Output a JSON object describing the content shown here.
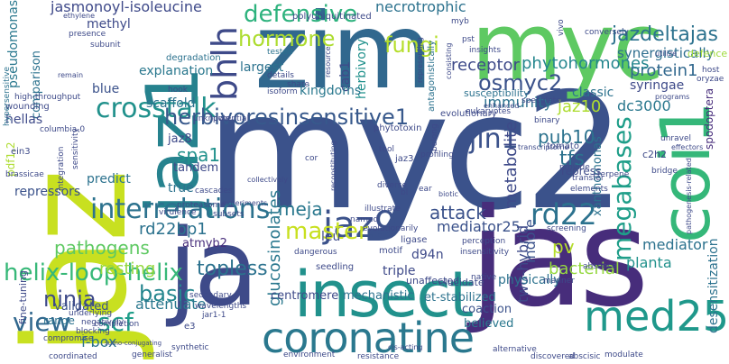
{
  "words": [
    {
      "text": "myc2",
      "color": "#3b528b"
    },
    {
      "text": "jas",
      "color": "#472d7b"
    },
    {
      "text": "jaz",
      "color": "#c8e020"
    },
    {
      "text": "zim",
      "color": "#31688e"
    },
    {
      "text": "myc",
      "color": "#5ec962"
    },
    {
      "text": "insect",
      "color": "#21918c"
    },
    {
      "text": "ja",
      "color": "#3e4a89"
    },
    {
      "text": "coi1",
      "color": "#35b779"
    },
    {
      "text": "jaz1",
      "color": "#26828e"
    },
    {
      "text": "coronatine",
      "color": "#2a788e"
    },
    {
      "text": "med25",
      "color": "#1f988b"
    },
    {
      "text": "jaz9",
      "color": "#3b528b"
    },
    {
      "text": "crosstalk",
      "color": "#21918c"
    },
    {
      "text": "interrelations",
      "color": "#2c728e"
    },
    {
      "text": "herbivoresinsensitive1",
      "color": "#38598c"
    },
    {
      "text": "bhlh",
      "color": "#3e4a89"
    },
    {
      "text": "defensive",
      "color": "#2db27d"
    },
    {
      "text": "hormone",
      "color": "#addc30"
    },
    {
      "text": "jasmonoyl-isoleucine",
      "color": "#3e4989"
    },
    {
      "text": "fungi",
      "color": "#b5de2b"
    },
    {
      "text": "jazdeltajas",
      "color": "#2c728e"
    },
    {
      "text": "synergistically",
      "color": "#2e6e8e"
    },
    {
      "text": "protein1",
      "color": "#31688e"
    },
    {
      "text": "phytohormones",
      "color": "#24868e"
    },
    {
      "text": "osmyc2",
      "color": "#3b528b"
    },
    {
      "text": "megabases",
      "color": "#1f9e89"
    },
    {
      "text": "master",
      "color": "#c8e020"
    },
    {
      "text": "jin1",
      "color": "#3b528b"
    },
    {
      "text": "tfs",
      "color": "#2c728e"
    },
    {
      "text": "rd22",
      "color": "#2c728e"
    },
    {
      "text": "helix-loop-helix",
      "color": "#37b878"
    },
    {
      "text": "basic",
      "color": "#24868e"
    },
    {
      "text": "ninja",
      "color": "#3e4a89"
    },
    {
      "text": "view",
      "color": "#31688e"
    },
    {
      "text": "scf",
      "color": "#1f9e89"
    },
    {
      "text": "pathogens",
      "color": "#5ec962"
    },
    {
      "text": "glucosinolates",
      "color": "#2a788e"
    },
    {
      "text": "topless",
      "color": "#2c728e"
    },
    {
      "text": "resting",
      "color": "#95d840"
    },
    {
      "text": "metabolite",
      "color": "#3e4a89"
    },
    {
      "text": "attack",
      "color": "#3b528b"
    },
    {
      "text": "meja",
      "color": "#2a788e"
    },
    {
      "text": "rd22bp1",
      "color": "#2c728e"
    },
    {
      "text": "pub10",
      "color": "#2c728e"
    },
    {
      "text": "spa1",
      "color": "#21918c"
    },
    {
      "text": "jaz10",
      "color": "#addc30"
    },
    {
      "text": "dc3000",
      "color": "#2a788e"
    },
    {
      "text": "mediator25",
      "color": "#3b528b"
    },
    {
      "text": "desensitization",
      "color": "#2c728e"
    },
    {
      "text": "two-hybrid",
      "color": "#3e4a89"
    },
    {
      "text": "pv",
      "color": "#b5de2b"
    },
    {
      "text": "mediator",
      "color": "#2c728e"
    },
    {
      "text": "indole",
      "color": "#3b528b"
    },
    {
      "text": "bacterial",
      "color": "#95d840"
    },
    {
      "text": "planta",
      "color": "#21918c"
    },
    {
      "text": "spodoptera",
      "color": "#472d7b"
    },
    {
      "text": "syringae",
      "color": "#3e4a89"
    },
    {
      "text": "defence",
      "color": "#9fda3a"
    },
    {
      "text": "receptor",
      "color": "#3e4a89"
    },
    {
      "text": "immunity",
      "color": "#2c728e"
    },
    {
      "text": "classic",
      "color": "#2c728e"
    },
    {
      "text": "necrotrophic",
      "color": "#2c728e"
    },
    {
      "text": "herbivory",
      "color": "#21918c"
    },
    {
      "text": "cab1",
      "color": "#3e4a89"
    },
    {
      "text": "kingdoms",
      "color": "#2a788e"
    },
    {
      "text": "largest",
      "color": "#2c728e"
    },
    {
      "text": "explanation",
      "color": "#2a788e"
    },
    {
      "text": "scaffold",
      "color": "#2c728e"
    },
    {
      "text": "blue",
      "color": "#3b528b"
    },
    {
      "text": "methyl",
      "color": "#3e4a89"
    },
    {
      "text": "pseudomonas",
      "color": "#2a788e"
    },
    {
      "text": "comparison",
      "color": "#2c728e"
    },
    {
      "text": "jaz8",
      "color": "#3e4a89"
    },
    {
      "text": "tandem",
      "color": "#3e4a89"
    },
    {
      "text": "repressors",
      "color": "#3b528b"
    },
    {
      "text": "predict",
      "color": "#2c728e"
    },
    {
      "text": "true",
      "color": "#2c728e"
    },
    {
      "text": "leu",
      "color": "#3e4a89"
    },
    {
      "text": "atmyb2",
      "color": "#472d7b"
    },
    {
      "text": "fine-tuning",
      "color": "#3e4a89"
    },
    {
      "text": "validated",
      "color": "#3b528b"
    },
    {
      "text": "range",
      "color": "#2c728e"
    },
    {
      "text": "attenuate",
      "color": "#2a788e"
    },
    {
      "text": "mechanistic",
      "color": "#2c728e"
    },
    {
      "text": "centromere",
      "color": "#3e4a89"
    },
    {
      "text": "et-stabilized",
      "color": "#2c728e"
    },
    {
      "text": "coaction",
      "color": "#3b528b"
    },
    {
      "text": "physically",
      "color": "#2c728e"
    },
    {
      "text": "triple",
      "color": "#3e4a89"
    },
    {
      "text": "d94n",
      "color": "#3e4a89"
    },
    {
      "text": "believed",
      "color": "#2a788e"
    },
    {
      "text": "f-box",
      "color": "#2c728e"
    },
    {
      "text": "hellas",
      "color": "#3e4a89"
    },
    {
      "text": "pdf1.2",
      "color": "#addc30"
    },
    {
      "text": "ein3",
      "color": "#3e4a89"
    },
    {
      "text": "xanthomonas",
      "color": "#2c728e"
    },
    {
      "text": "c2h2",
      "color": "#3e4a89"
    },
    {
      "text": "repress",
      "color": "#3e4a89"
    },
    {
      "text": "tomato",
      "color": "#3e4a89"
    },
    {
      "text": "unaffected",
      "color": "#3e4a89"
    },
    {
      "text": "elucidate",
      "color": "#3e4a89"
    },
    {
      "text": "tested",
      "color": "#2c728e"
    },
    {
      "text": "polyubiquitinated",
      "color": "#3e4a89"
    },
    {
      "text": "degradation",
      "color": "#2c728e"
    },
    {
      "text": "susceptibility",
      "color": "#2c728e"
    },
    {
      "text": "antagonistically",
      "color": "#2c728e"
    },
    {
      "text": "evolutionary",
      "color": "#3e4a89"
    },
    {
      "text": "phytotoxin",
      "color": "#3e4a89"
    },
    {
      "text": "eukaryotes",
      "color": "#3e4a89"
    },
    {
      "text": "binary",
      "color": "#3e4a89"
    },
    {
      "text": "potential",
      "color": "#3e4a89"
    },
    {
      "text": "wounding",
      "color": "#3e4a89"
    },
    {
      "text": "high-throughput",
      "color": "#3e4a89"
    },
    {
      "text": "brassicae",
      "color": "#3e4a89"
    },
    {
      "text": "hypersensitive",
      "color": "#2c728e"
    },
    {
      "text": "virulence",
      "color": "#3e4a89"
    },
    {
      "text": "proteasome",
      "color": "#3e4a89"
    },
    {
      "text": "cascades",
      "color": "#3e4a89"
    },
    {
      "text": "integration",
      "color": "#3e4a89"
    },
    {
      "text": "experiments",
      "color": "#3e4a89"
    },
    {
      "text": "collectively",
      "color": "#3e4a89"
    },
    {
      "text": "dangerous",
      "color": "#3e4a89"
    },
    {
      "text": "subsets",
      "color": "#3e4a89"
    },
    {
      "text": "seedling",
      "color": "#3e4a89"
    },
    {
      "text": "motif",
      "color": "#3e4a89"
    },
    {
      "text": "ligase",
      "color": "#3e4a89"
    },
    {
      "text": "evolutionarily",
      "color": "#3e4a89"
    },
    {
      "text": "named",
      "color": "#3e4a89"
    },
    {
      "text": "diverse",
      "color": "#3e4a89"
    },
    {
      "text": "illustrate",
      "color": "#3e4a89"
    },
    {
      "text": "belong",
      "color": "#3e4a89"
    },
    {
      "text": "perception",
      "color": "#3e4a89"
    },
    {
      "text": "insensitivity",
      "color": "#3e4a89"
    },
    {
      "text": "screening",
      "color": "#3e4a89"
    },
    {
      "text": "elements",
      "color": "#3e4a89"
    },
    {
      "text": "terpene",
      "color": "#3e4a89"
    },
    {
      "text": "transfer",
      "color": "#3e4a89"
    },
    {
      "text": "provide",
      "color": "#3e4a89"
    },
    {
      "text": "bridge",
      "color": "#3e4a89"
    },
    {
      "text": "pathogenesis-related",
      "color": "#3e4a89"
    },
    {
      "text": "absence",
      "color": "#3e4a89"
    },
    {
      "text": "manner",
      "color": "#3e4a89"
    },
    {
      "text": "native",
      "color": "#3e4a89"
    },
    {
      "text": "alternative",
      "color": "#3e4a89"
    },
    {
      "text": "discovered",
      "color": "#3e4a89"
    },
    {
      "text": "abscisic",
      "color": "#3e4a89"
    },
    {
      "text": "modulate",
      "color": "#3e4a89"
    },
    {
      "text": "resistance",
      "color": "#3e4a89"
    },
    {
      "text": "environment",
      "color": "#3e4a89"
    },
    {
      "text": "generalist",
      "color": "#3e4a89"
    },
    {
      "text": "synthetic",
      "color": "#3e4a89"
    },
    {
      "text": "coordinated",
      "color": "#3e4a89"
    },
    {
      "text": "blocking",
      "color": "#3e4a89"
    },
    {
      "text": "compromise",
      "color": "#3e4a89"
    },
    {
      "text": "negatively",
      "color": "#3e4a89"
    },
    {
      "text": "underlying",
      "color": "#3e4a89"
    },
    {
      "text": "completion",
      "color": "#3e4a89"
    },
    {
      "text": "secondary",
      "color": "#3e4a89"
    },
    {
      "text": "wavelengths",
      "color": "#3e4a89"
    },
    {
      "text": "jar1-1",
      "color": "#3e4a89"
    },
    {
      "text": "e3",
      "color": "#3e4a89"
    },
    {
      "text": "isoform",
      "color": "#3e4a89"
    },
    {
      "text": "share",
      "color": "#3e4a89"
    },
    {
      "text": "details",
      "color": "#3e4a89"
    },
    {
      "text": "hook",
      "color": "#3e4a89"
    },
    {
      "text": "remain",
      "color": "#3e4a89"
    },
    {
      "text": "subunit",
      "color": "#3e4a89"
    },
    {
      "text": "presence",
      "color": "#3e4a89"
    },
    {
      "text": "ethylene",
      "color": "#3e4a89"
    },
    {
      "text": "unknown",
      "color": "#3e4a89"
    },
    {
      "text": "columbia-0",
      "color": "#3e4a89"
    },
    {
      "text": "sensitivity",
      "color": "#3e4a89"
    },
    {
      "text": "pst",
      "color": "#3e4a89"
    },
    {
      "text": "myb",
      "color": "#3e4a89"
    },
    {
      "text": "insights",
      "color": "#3e4a89"
    },
    {
      "text": "vivo",
      "color": "#3e4a89"
    },
    {
      "text": "conversely",
      "color": "#3e4a89"
    },
    {
      "text": "utilize",
      "color": "#3e4a89"
    },
    {
      "text": "host",
      "color": "#3e4a89"
    },
    {
      "text": "oryzae",
      "color": "#3e4a89"
    },
    {
      "text": "programs",
      "color": "#3e4a89"
    },
    {
      "text": "enhanced",
      "color": "#3e4a89"
    },
    {
      "text": "speculate",
      "color": "#3e4a89"
    },
    {
      "text": "consisting",
      "color": "#3e4a89"
    },
    {
      "text": "representing",
      "color": "#3e4a89"
    },
    {
      "text": "resource",
      "color": "#3e4a89"
    },
    {
      "text": "cor",
      "color": "#3e4a89"
    },
    {
      "text": "tool",
      "color": "#3e4a89"
    },
    {
      "text": "reconstituting",
      "color": "#3e4a89"
    },
    {
      "text": "profiling",
      "color": "#3e4a89"
    },
    {
      "text": "transcriptome",
      "color": "#3e4a89"
    },
    {
      "text": "bl",
      "color": "#3e4a89"
    },
    {
      "text": "ear",
      "color": "#3e4a89"
    },
    {
      "text": "sumo-conjugating",
      "color": "#3e4a89"
    },
    {
      "text": "cis-acting",
      "color": "#3e4a89"
    },
    {
      "text": "biotic",
      "color": "#3e4a89"
    },
    {
      "text": "jaz3",
      "color": "#3e4a89"
    },
    {
      "text": "unravel",
      "color": "#3e4a89"
    },
    {
      "text": "effectors",
      "color": "#3e4a89"
    }
  ]
}
